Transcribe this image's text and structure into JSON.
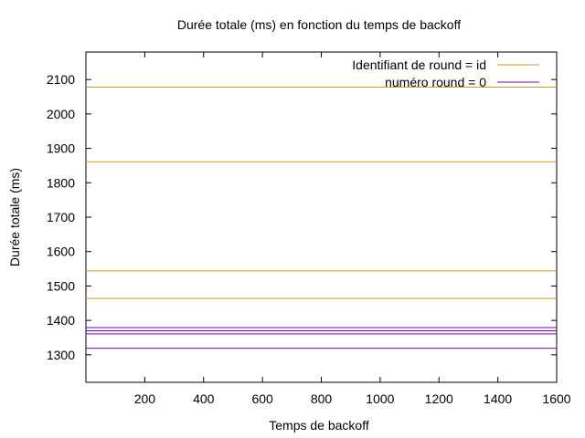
{
  "chart_data": {
    "type": "line",
    "title": "Durée totale (ms) en fonction du temps de backoff",
    "xlabel": "Temps de backoff",
    "ylabel": "Durée totale (ms)",
    "xlim": [
      0,
      1600
    ],
    "ylim": [
      1220,
      2180
    ],
    "xticks": [
      200,
      400,
      600,
      800,
      1000,
      1200,
      1400,
      1600
    ],
    "yticks": [
      1300,
      1400,
      1500,
      1600,
      1700,
      1800,
      1900,
      2000,
      2100
    ],
    "grid": false,
    "legend_position": "top-right",
    "series": [
      {
        "name": "Identifiant de round = id",
        "color": "#c0a020",
        "y_constants": [
          2078,
          1861,
          1544,
          1464
        ]
      },
      {
        "name": "numéro round = 0",
        "color": "#7a00c8",
        "y_constants": [
          1379,
          1370,
          1361,
          1319
        ]
      }
    ]
  }
}
